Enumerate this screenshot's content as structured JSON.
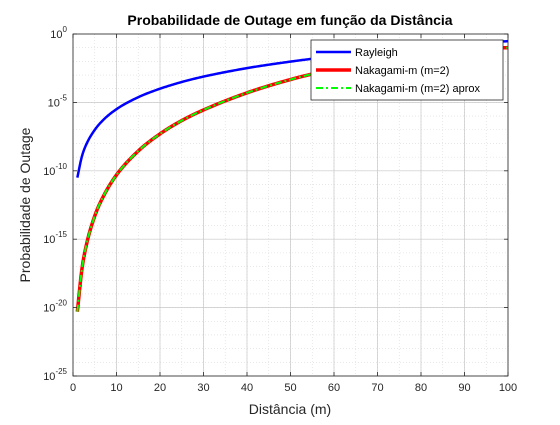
{
  "chart_data": {
    "type": "line",
    "title": "Probabilidade de Outage em função da Distância",
    "xlabel": "Distância (m)",
    "ylabel": "Probabilidade de Outage",
    "xscale": "linear",
    "yscale": "log",
    "xlim": [
      0,
      100
    ],
    "ylim": [
      1e-25,
      1
    ],
    "xticks": [
      0,
      10,
      20,
      30,
      40,
      50,
      60,
      70,
      80,
      90,
      100
    ],
    "xtick_labels": [
      "0",
      "10",
      "20",
      "30",
      "40",
      "50",
      "60",
      "70",
      "80",
      "90",
      "100"
    ],
    "yticks": [
      {
        "value": 1,
        "base": "10",
        "exp": "0"
      },
      {
        "value": 1e-05,
        "base": "10",
        "exp": "-5"
      },
      {
        "value": 1e-10,
        "base": "10",
        "exp": "-10"
      },
      {
        "value": 1e-15,
        "base": "10",
        "exp": "-15"
      },
      {
        "value": 1e-20,
        "base": "10",
        "exp": "-20"
      },
      {
        "value": 1e-25,
        "base": "10",
        "exp": "-25"
      }
    ],
    "grid": true,
    "minor_grid": true,
    "legend_position": "top-right",
    "series": [
      {
        "name": "Rayleigh",
        "color": "#0000ff",
        "style": "solid",
        "x": [
          1,
          2,
          3,
          5,
          7,
          10,
          15,
          20,
          25,
          30,
          40,
          50,
          60,
          70,
          80,
          90,
          100
        ],
        "y": [
          3.2e-11,
          1e-09,
          7.8e-09,
          9.8e-08,
          5.4e-07,
          3.2e-06,
          2.4e-05,
          0.0001,
          0.00031,
          0.00077,
          0.0032,
          0.0096,
          0.024,
          0.052,
          0.1,
          0.19,
          0.3
        ]
      },
      {
        "name": "Nakagami-m (m=2)",
        "color": "#ff0000",
        "style": "solid",
        "x": [
          1,
          2,
          3,
          5,
          7,
          10,
          15,
          20,
          25,
          30,
          40,
          50,
          60,
          70,
          80,
          90,
          100
        ],
        "y": [
          5e-21,
          5e-18,
          3e-16,
          5e-14,
          1.4e-12,
          5e-11,
          2.8e-09,
          5e-08,
          4.7e-07,
          2.8e-06,
          5e-05,
          0.00047,
          0.0028,
          0.014,
          0.035,
          0.08,
          0.1
        ]
      },
      {
        "name": "Nakagami-m (m=2) aprox",
        "color": "#00ff00",
        "style": "dashdot",
        "x": [
          1,
          2,
          3,
          5,
          7,
          10,
          15,
          20,
          25,
          30,
          40,
          50,
          60,
          70,
          80,
          90,
          100
        ],
        "y": [
          5e-21,
          5e-18,
          3e-16,
          5e-14,
          1.4e-12,
          5e-11,
          2.8e-09,
          5e-08,
          4.7e-07,
          2.8e-06,
          5e-05,
          0.00047,
          0.0028,
          0.014,
          0.035,
          0.08,
          0.1
        ]
      }
    ]
  }
}
